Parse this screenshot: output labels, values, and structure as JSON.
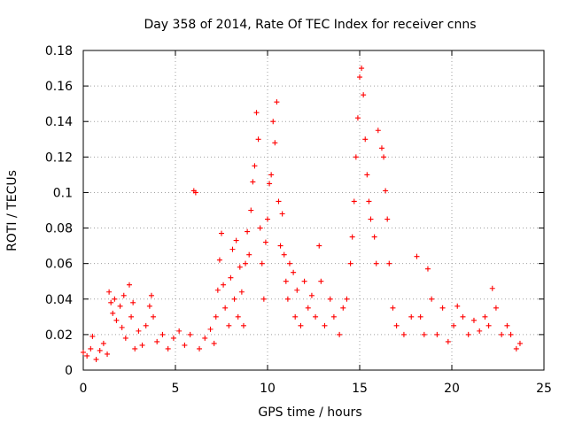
{
  "chart_data": {
    "type": "scatter",
    "title": "Day 358 of 2014, Rate Of TEC Index for receiver cnns",
    "xlabel": "GPS time / hours",
    "ylabel": "ROTI / TECUs",
    "xlim": [
      0,
      25
    ],
    "ylim": [
      0,
      0.18
    ],
    "xticks": [
      0,
      5,
      10,
      15,
      20,
      25
    ],
    "xtick_labels": [
      "0",
      "5",
      "10",
      "15",
      "20",
      "25"
    ],
    "yticks": [
      0,
      0.02,
      0.04,
      0.06,
      0.08,
      0.1,
      0.12,
      0.14,
      0.16,
      0.18
    ],
    "ytick_labels": [
      "0",
      "0.02",
      "0.04",
      "0.06",
      "0.08",
      "0.1",
      "0.12",
      "0.14",
      "0.16",
      "0.18"
    ],
    "grid": true,
    "marker": "+",
    "color": "#ff0000",
    "series": [
      {
        "name": "ROTI",
        "points": [
          [
            0.0,
            0.01
          ],
          [
            0.2,
            0.008
          ],
          [
            0.4,
            0.012
          ],
          [
            0.5,
            0.019
          ],
          [
            0.7,
            0.006
          ],
          [
            0.9,
            0.011
          ],
          [
            1.1,
            0.015
          ],
          [
            1.3,
            0.009
          ],
          [
            1.4,
            0.044
          ],
          [
            1.5,
            0.038
          ],
          [
            1.6,
            0.032
          ],
          [
            1.7,
            0.04
          ],
          [
            1.8,
            0.028
          ],
          [
            2.0,
            0.036
          ],
          [
            2.1,
            0.024
          ],
          [
            2.2,
            0.042
          ],
          [
            2.3,
            0.018
          ],
          [
            2.5,
            0.048
          ],
          [
            2.6,
            0.03
          ],
          [
            2.7,
            0.038
          ],
          [
            2.8,
            0.012
          ],
          [
            3.0,
            0.022
          ],
          [
            3.2,
            0.014
          ],
          [
            3.4,
            0.025
          ],
          [
            3.6,
            0.036
          ],
          [
            3.7,
            0.042
          ],
          [
            3.8,
            0.03
          ],
          [
            4.0,
            0.016
          ],
          [
            4.3,
            0.02
          ],
          [
            4.6,
            0.012
          ],
          [
            4.9,
            0.018
          ],
          [
            5.2,
            0.022
          ],
          [
            5.5,
            0.014
          ],
          [
            5.8,
            0.02
          ],
          [
            6.0,
            0.101
          ],
          [
            6.1,
            0.1
          ],
          [
            6.3,
            0.012
          ],
          [
            6.6,
            0.018
          ],
          [
            6.9,
            0.023
          ],
          [
            7.1,
            0.015
          ],
          [
            7.2,
            0.03
          ],
          [
            7.3,
            0.045
          ],
          [
            7.4,
            0.062
          ],
          [
            7.5,
            0.077
          ],
          [
            7.6,
            0.048
          ],
          [
            7.7,
            0.035
          ],
          [
            7.9,
            0.025
          ],
          [
            8.0,
            0.052
          ],
          [
            8.1,
            0.068
          ],
          [
            8.2,
            0.04
          ],
          [
            8.3,
            0.073
          ],
          [
            8.4,
            0.03
          ],
          [
            8.5,
            0.058
          ],
          [
            8.6,
            0.044
          ],
          [
            8.7,
            0.025
          ],
          [
            8.8,
            0.06
          ],
          [
            8.9,
            0.078
          ],
          [
            9.0,
            0.065
          ],
          [
            9.1,
            0.09
          ],
          [
            9.2,
            0.106
          ],
          [
            9.3,
            0.115
          ],
          [
            9.4,
            0.145
          ],
          [
            9.5,
            0.13
          ],
          [
            9.6,
            0.08
          ],
          [
            9.7,
            0.06
          ],
          [
            9.8,
            0.04
          ],
          [
            9.9,
            0.072
          ],
          [
            10.0,
            0.085
          ],
          [
            10.1,
            0.105
          ],
          [
            10.2,
            0.11
          ],
          [
            10.3,
            0.14
          ],
          [
            10.4,
            0.128
          ],
          [
            10.5,
            0.151
          ],
          [
            10.6,
            0.095
          ],
          [
            10.7,
            0.07
          ],
          [
            10.8,
            0.088
          ],
          [
            10.9,
            0.065
          ],
          [
            11.0,
            0.05
          ],
          [
            11.1,
            0.04
          ],
          [
            11.2,
            0.06
          ],
          [
            11.4,
            0.055
          ],
          [
            11.5,
            0.03
          ],
          [
            11.6,
            0.045
          ],
          [
            11.8,
            0.025
          ],
          [
            12.0,
            0.05
          ],
          [
            12.2,
            0.035
          ],
          [
            12.4,
            0.042
          ],
          [
            12.6,
            0.03
          ],
          [
            12.8,
            0.07
          ],
          [
            12.9,
            0.05
          ],
          [
            13.1,
            0.025
          ],
          [
            13.4,
            0.04
          ],
          [
            13.6,
            0.03
          ],
          [
            13.9,
            0.02
          ],
          [
            14.1,
            0.035
          ],
          [
            14.3,
            0.04
          ],
          [
            14.5,
            0.06
          ],
          [
            14.6,
            0.075
          ],
          [
            14.7,
            0.095
          ],
          [
            14.8,
            0.12
          ],
          [
            14.9,
            0.142
          ],
          [
            15.0,
            0.165
          ],
          [
            15.1,
            0.17
          ],
          [
            15.2,
            0.155
          ],
          [
            15.3,
            0.13
          ],
          [
            15.4,
            0.11
          ],
          [
            15.5,
            0.095
          ],
          [
            15.6,
            0.085
          ],
          [
            15.8,
            0.075
          ],
          [
            15.9,
            0.06
          ],
          [
            16.0,
            0.135
          ],
          [
            16.2,
            0.125
          ],
          [
            16.3,
            0.12
          ],
          [
            16.4,
            0.101
          ],
          [
            16.5,
            0.085
          ],
          [
            16.6,
            0.06
          ],
          [
            16.8,
            0.035
          ],
          [
            17.0,
            0.025
          ],
          [
            17.4,
            0.02
          ],
          [
            17.8,
            0.03
          ],
          [
            18.1,
            0.064
          ],
          [
            18.3,
            0.03
          ],
          [
            18.5,
            0.02
          ],
          [
            18.7,
            0.057
          ],
          [
            18.9,
            0.04
          ],
          [
            19.2,
            0.02
          ],
          [
            19.5,
            0.035
          ],
          [
            19.8,
            0.016
          ],
          [
            20.1,
            0.025
          ],
          [
            20.3,
            0.036
          ],
          [
            20.6,
            0.03
          ],
          [
            20.9,
            0.02
          ],
          [
            21.2,
            0.028
          ],
          [
            21.5,
            0.022
          ],
          [
            21.8,
            0.03
          ],
          [
            22.0,
            0.025
          ],
          [
            22.2,
            0.046
          ],
          [
            22.4,
            0.035
          ],
          [
            22.7,
            0.02
          ],
          [
            23.0,
            0.025
          ],
          [
            23.2,
            0.02
          ],
          [
            23.5,
            0.012
          ],
          [
            23.7,
            0.015
          ]
        ]
      }
    ]
  }
}
